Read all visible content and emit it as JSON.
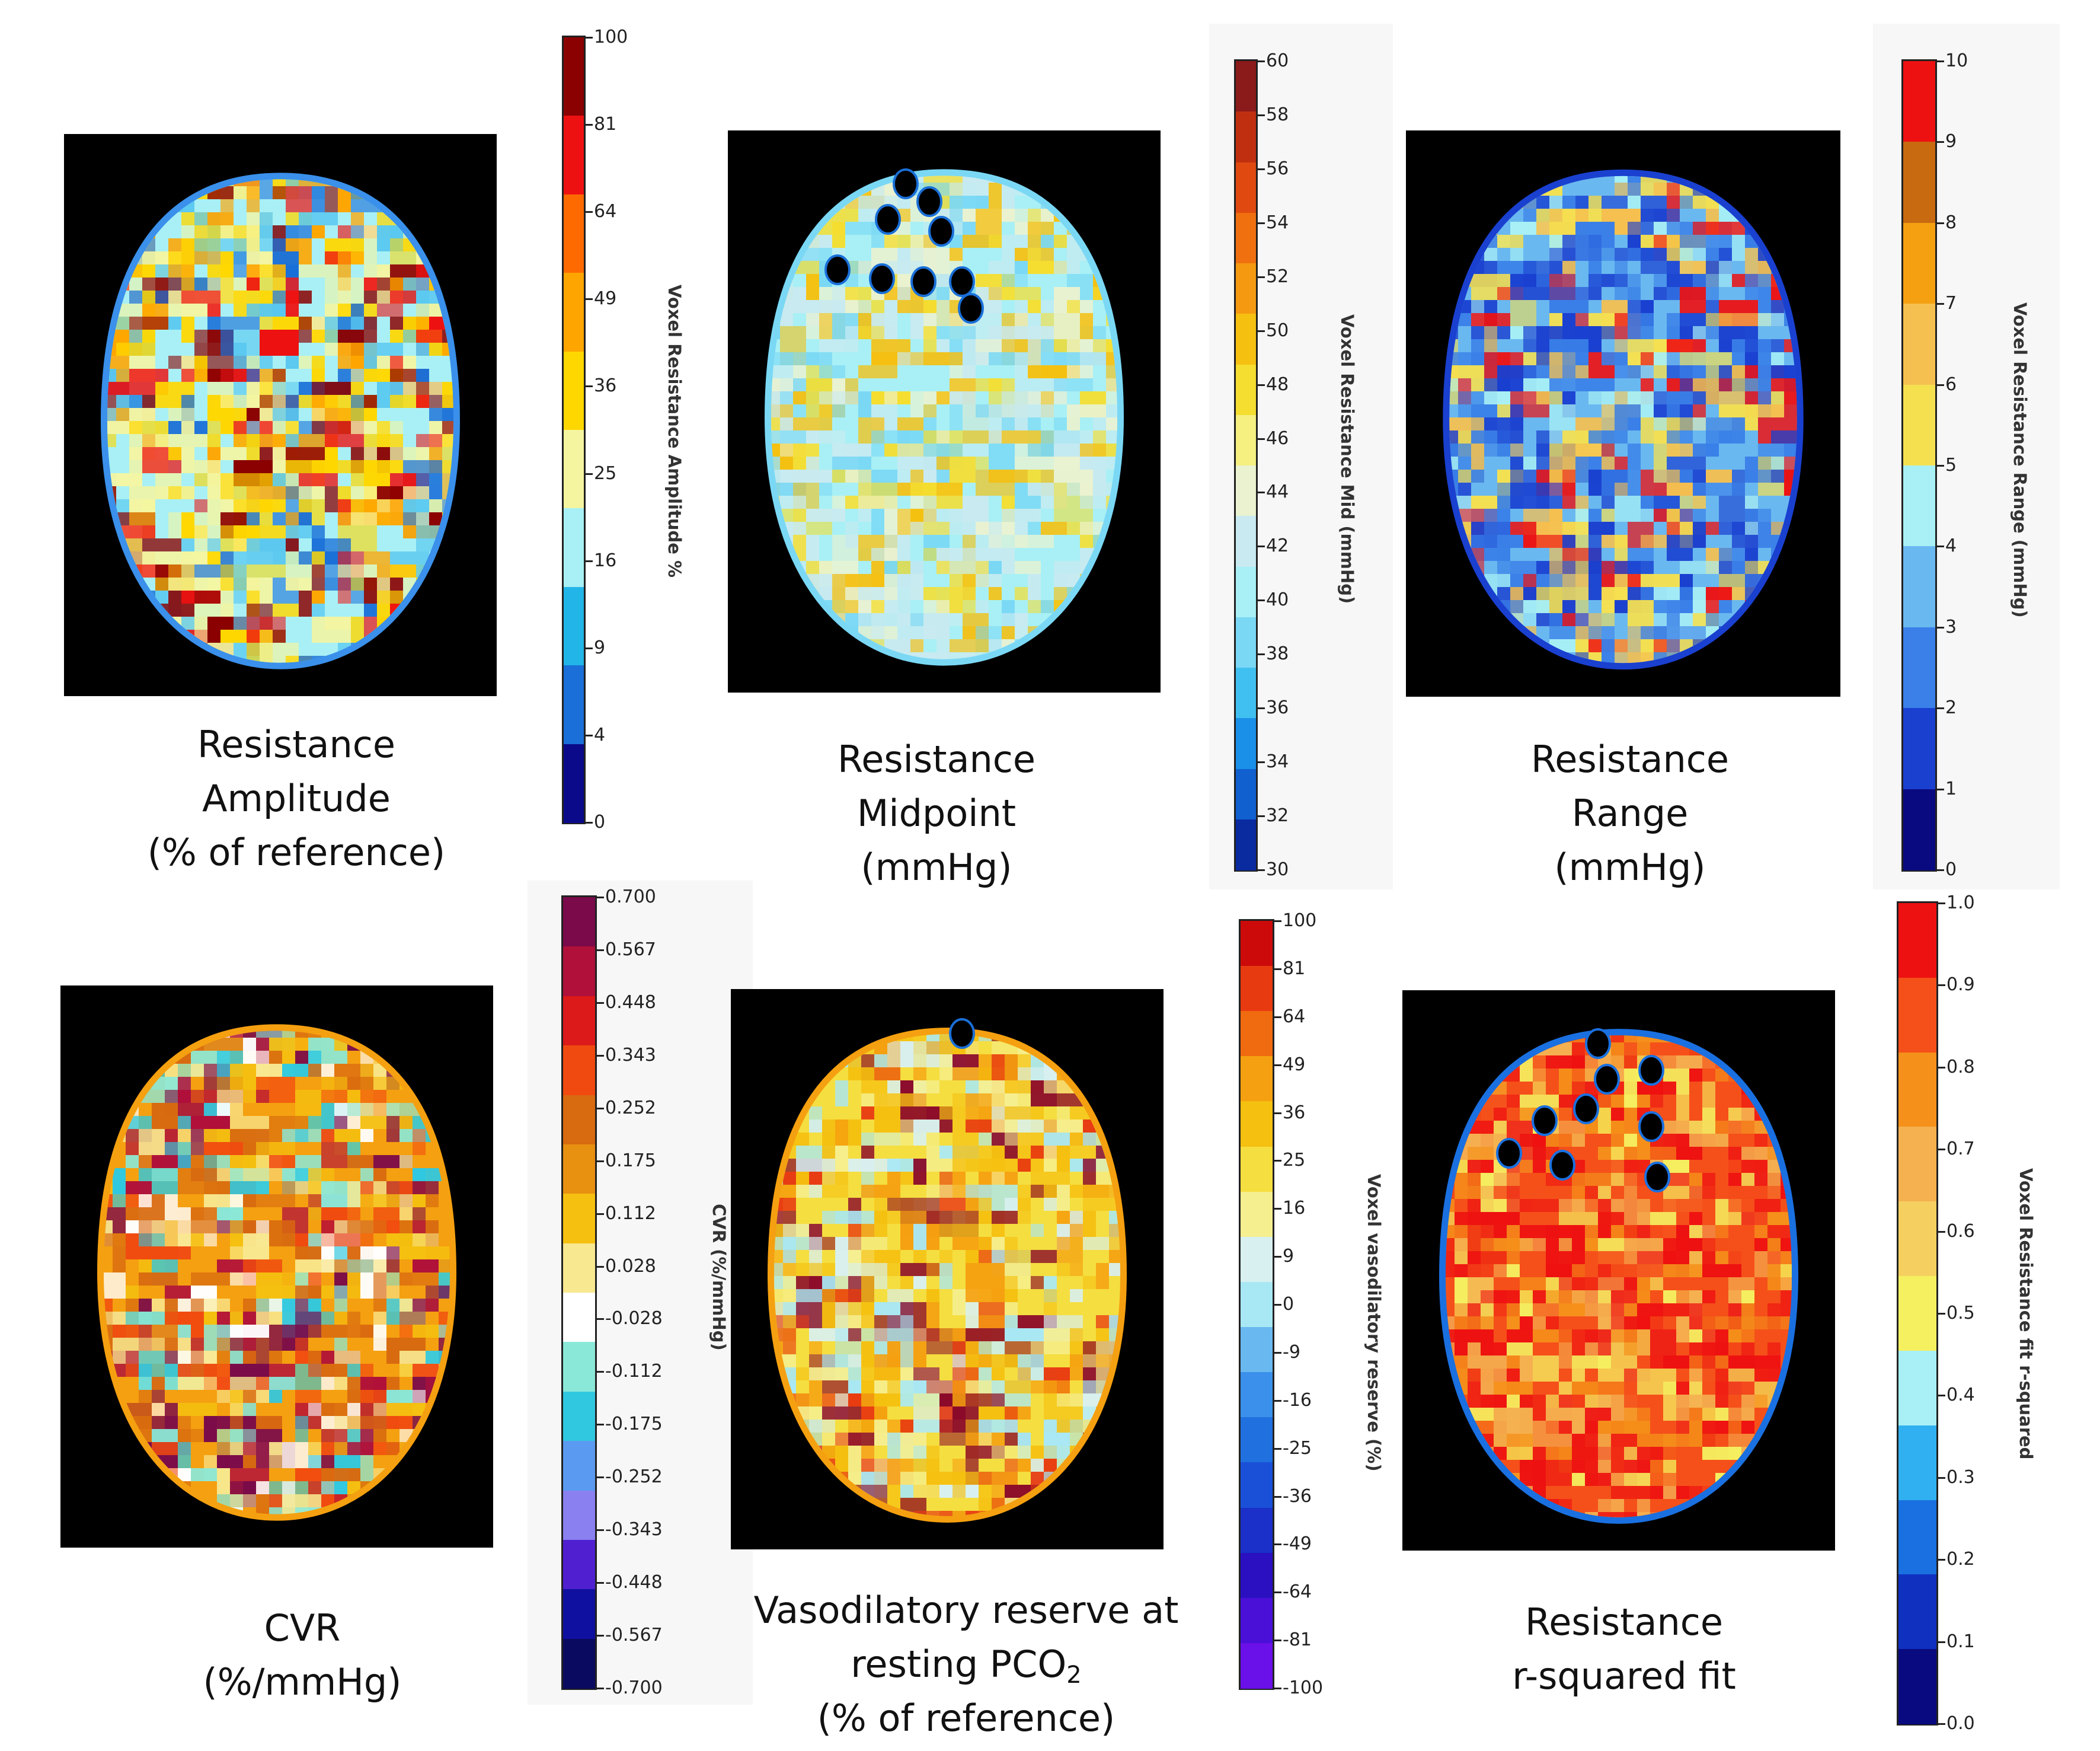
{
  "panels": [
    {
      "id": "amplitude",
      "caption": [
        "Resistance",
        "Amplitude",
        "(% of reference)"
      ],
      "colorbar_label": "Voxel Resistance Amplitude %",
      "ticks": [
        "100",
        "81",
        "64",
        "49",
        "36",
        "25",
        "16",
        "9",
        "4",
        "0"
      ],
      "colors": [
        "#8b0000",
        "#ee1111",
        "#ff6a00",
        "#ffa500",
        "#ffd700",
        "#f5f5a0",
        "#a8f0f5",
        "#22b5e8",
        "#1a6fd8",
        "#0a0a8a"
      ]
    },
    {
      "id": "midpoint",
      "caption": [
        "Resistance",
        "Midpoint",
        "(mmHg)"
      ],
      "colorbar_label": "Voxel Resistance Mid (mmHg)",
      "ticks": [
        "60",
        "58",
        "56",
        "54",
        "52",
        "50",
        "48",
        "46",
        "44",
        "42",
        "40",
        "38",
        "36",
        "34",
        "32",
        "30"
      ],
      "colors": [
        "#8b1a1a",
        "#c03010",
        "#e04a10",
        "#f07010",
        "#f59a10",
        "#f5c010",
        "#f5de30",
        "#f5f080",
        "#eaf2d0",
        "#c8eaf0",
        "#a8f0f5",
        "#7ad8f5",
        "#40c0f0",
        "#1a90e8",
        "#1060d0",
        "#0a2aa0"
      ]
    },
    {
      "id": "range",
      "caption": [
        "Resistance",
        "Range",
        "(mmHg)"
      ],
      "colorbar_label": "Voxel Resistance Range (mmHg)",
      "ticks": [
        "10",
        "9",
        "8",
        "7",
        "6",
        "5",
        "4",
        "3",
        "2",
        "1",
        "0"
      ],
      "colors": [
        "#ee1111",
        "#c86a10",
        "#f5a010",
        "#f5c050",
        "#f5e050",
        "#a8f0f5",
        "#6ab8f0",
        "#3a80e8",
        "#1a40d0",
        "#0a0a80"
      ]
    },
    {
      "id": "cvr",
      "caption": [
        "CVR",
        "(%/mmHg)"
      ],
      "colorbar_label": "CVR (%/mmHg)",
      "ticks": [
        "0.700",
        "0.567",
        "0.448",
        "0.343",
        "0.252",
        "0.175",
        "0.112",
        "0.028",
        "-0.028",
        "-0.112",
        "-0.175",
        "-0.252",
        "-0.343",
        "-0.448",
        "-0.567",
        "-0.700"
      ],
      "colors": [
        "#7a0a4a",
        "#b0103a",
        "#dd1a1a",
        "#f04a10",
        "#d86a10",
        "#e89010",
        "#f5c010",
        "#f8e890",
        "#ffffff",
        "#8ae8d8",
        "#30c8e0",
        "#5a9af0",
        "#8a80f0",
        "#5020d0",
        "#1010a0",
        "#0a0a60"
      ]
    },
    {
      "id": "vasodilatory",
      "caption_lines": [
        "Vasodilatory reserve at",
        "resting PCO",
        "2",
        "(% of reference)"
      ],
      "colorbar_label": "Voxel vasodilatory reserve (%)",
      "ticks": [
        "100",
        "81",
        "64",
        "49",
        "36",
        "25",
        "16",
        "9",
        "0",
        "-9",
        "-16",
        "-25",
        "-36",
        "-49",
        "-64",
        "-81",
        "-100"
      ],
      "colors": [
        "#cc0a0a",
        "#e83a10",
        "#f06a10",
        "#f5a010",
        "#f5c010",
        "#f5de40",
        "#f5ef90",
        "#d8f0f0",
        "#a8e8f5",
        "#6ab8f0",
        "#3a90ea",
        "#2070e0",
        "#1a50d8",
        "#1a30c8",
        "#2a10c0",
        "#4a10d8",
        "#6a10e8"
      ]
    },
    {
      "id": "rsquared",
      "caption": [
        "Resistance",
        "r-squared fit"
      ],
      "colorbar_label": "Voxel Resistance fit r-squared",
      "ticks": [
        "1.0",
        "0.9",
        "0.8",
        "0.7",
        "0.6",
        "0.5",
        "0.4",
        "0.3",
        "0.2",
        "0.1",
        "0.0"
      ],
      "colors": [
        "#ee1111",
        "#f5501a",
        "#f5901a",
        "#f5b050",
        "#f5d060",
        "#f5f060",
        "#a8f0f5",
        "#30b0f0",
        "#1a70e0",
        "#1030c0",
        "#0a0a80"
      ]
    }
  ]
}
